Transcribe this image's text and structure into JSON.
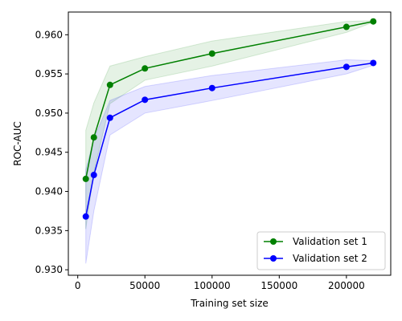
{
  "chart_data": {
    "type": "line",
    "xlabel": "Training set size",
    "ylabel": "ROC-AUC",
    "xlim": [
      -7000,
      233000
    ],
    "ylim": [
      0.9293,
      0.9629
    ],
    "x_ticks": [
      0,
      50000,
      100000,
      150000,
      200000
    ],
    "y_ticks": [
      0.93,
      0.935,
      0.94,
      0.945,
      0.95,
      0.955,
      0.96
    ],
    "grid": false,
    "legend_position": "bottom-right",
    "series": [
      {
        "name": "Validation set 1",
        "color": "#008000",
        "band_color": "#008000",
        "x": [
          6000,
          12000,
          24000,
          50000,
          100000,
          200000,
          220000
        ],
        "y": [
          0.9416,
          0.9469,
          0.9536,
          0.9557,
          0.9576,
          0.961,
          0.9617
        ],
        "lower": [
          0.9352,
          0.9425,
          0.9512,
          0.9542,
          0.956,
          0.9603,
          0.9616
        ],
        "upper": [
          0.9478,
          0.9513,
          0.956,
          0.9572,
          0.9592,
          0.9617,
          0.9618
        ]
      },
      {
        "name": "Validation set 2",
        "color": "#0000ff",
        "band_color": "#0000ff",
        "x": [
          6000,
          12000,
          24000,
          50000,
          100000,
          200000,
          220000
        ],
        "y": [
          0.9368,
          0.9421,
          0.9494,
          0.9517,
          0.9532,
          0.9559,
          0.9564
        ],
        "lower": [
          0.9308,
          0.9375,
          0.9472,
          0.95,
          0.9516,
          0.955,
          0.9561
        ],
        "upper": [
          0.9428,
          0.9467,
          0.9516,
          0.9534,
          0.9548,
          0.9568,
          0.9567
        ]
      }
    ]
  }
}
